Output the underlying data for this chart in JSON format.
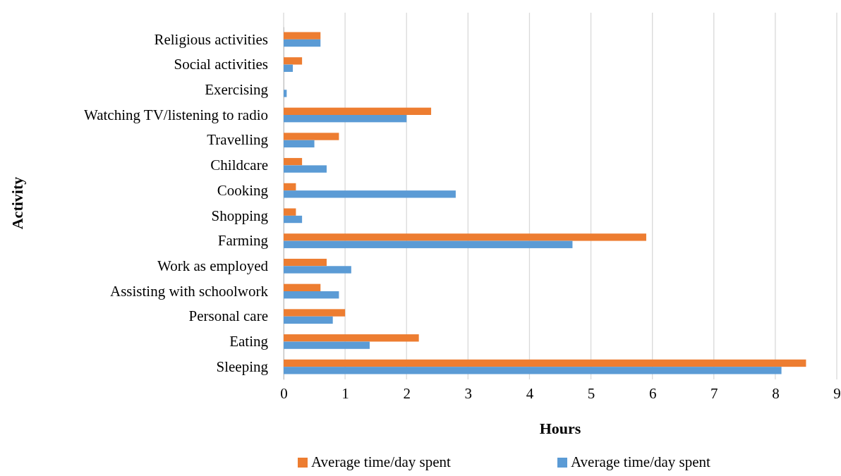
{
  "chart_data": {
    "type": "bar",
    "orientation": "horizontal",
    "xlabel": "Hours",
    "ylabel": "Activity",
    "categories": [
      "Religious activities",
      "Social activities",
      "Exercising",
      "Watching TV/listening to radio",
      "Travelling",
      "Childcare",
      "Cooking",
      "Shopping",
      "Farming",
      "Work as employed",
      "Assisting with schoolwork",
      "Personal care",
      "Eating",
      "Sleeping"
    ],
    "series": [
      {
        "name": "Average time/day spent",
        "color": "#ed7d31",
        "values": [
          0.6,
          0.3,
          0,
          2.4,
          0.9,
          0.3,
          0.2,
          0.2,
          5.9,
          0.7,
          0.6,
          1.0,
          2.2,
          8.5
        ]
      },
      {
        "name": "Average time/day spent",
        "color": "#5b9bd5",
        "values": [
          0.6,
          0.15,
          0.05,
          2.0,
          0.5,
          0.7,
          2.8,
          0.3,
          4.7,
          1.1,
          0.9,
          0.8,
          1.4,
          8.1
        ]
      }
    ],
    "xlim": [
      0,
      9
    ],
    "xticks": [
      0,
      1,
      2,
      3,
      4,
      5,
      6,
      7,
      8,
      9
    ],
    "grid": "x",
    "legend": "bottom"
  }
}
